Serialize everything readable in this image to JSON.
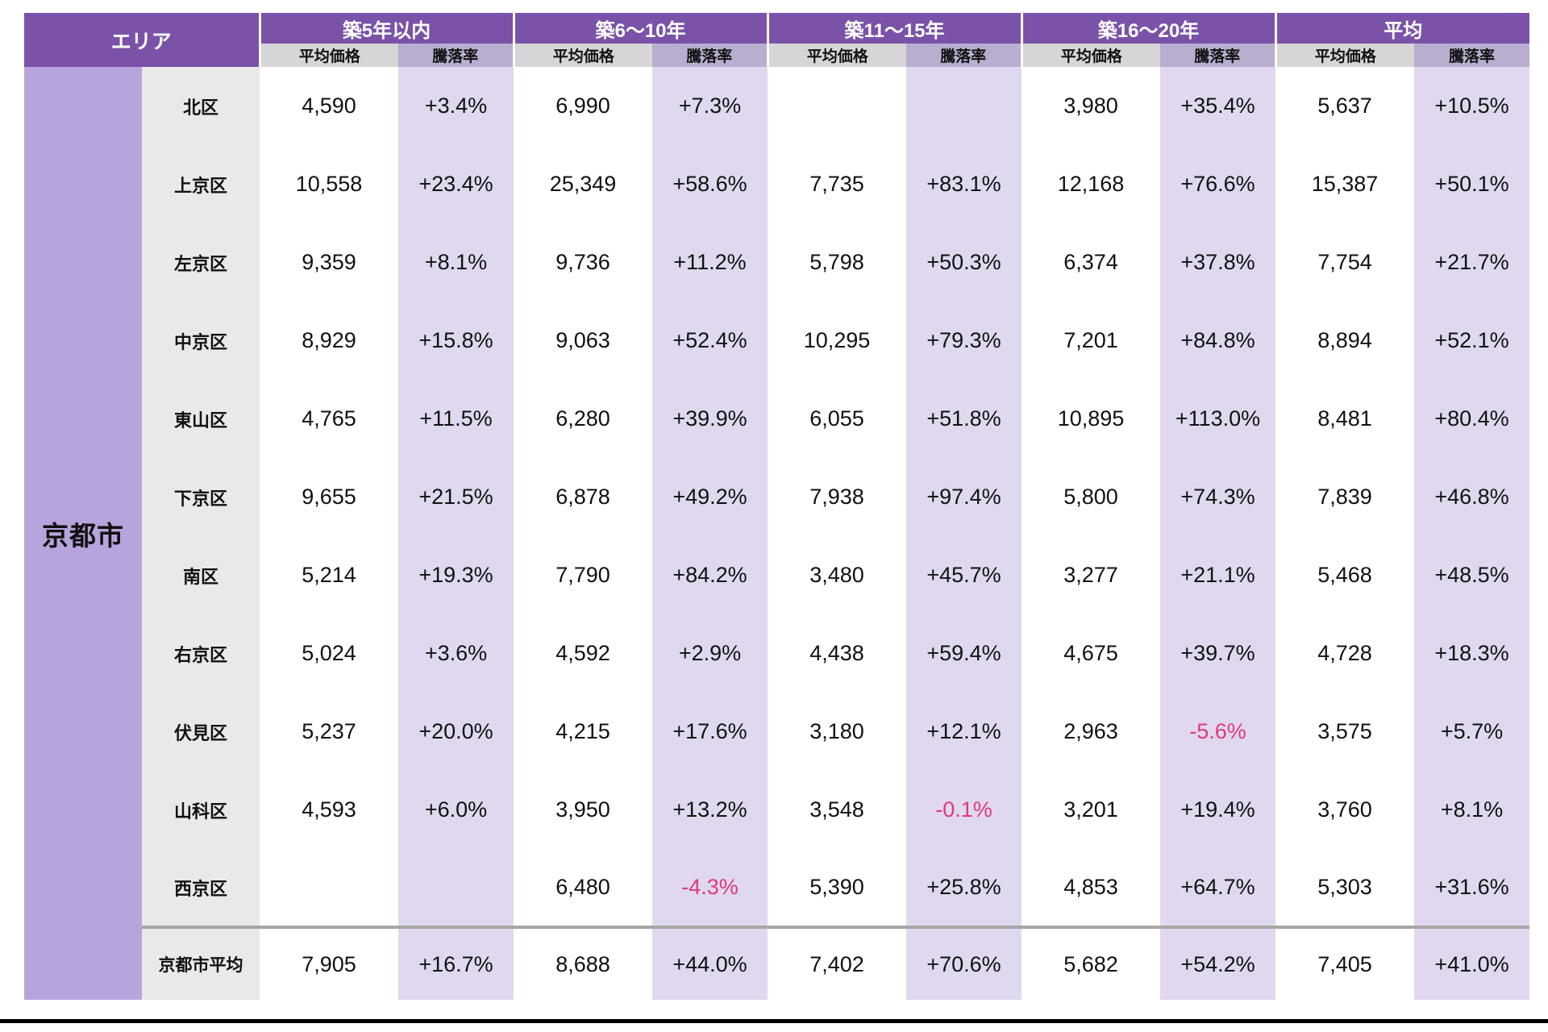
{
  "chart_data": {
    "type": "table",
    "area_header": "エリア",
    "city_label": "京都市",
    "column_groups": [
      {
        "label": "築5年以内"
      },
      {
        "label": "築6〜10年"
      },
      {
        "label": "築11〜15年"
      },
      {
        "label": "築16〜20年"
      },
      {
        "label": "平均"
      }
    ],
    "sub_headers": {
      "price": "平均価格",
      "rate": "騰落率"
    },
    "rows": [
      {
        "district": "北区",
        "cells": [
          "4,590",
          "+3.4%",
          "6,990",
          "+7.3%",
          "",
          "",
          "3,980",
          "+35.4%",
          "5,637",
          "+10.5%"
        ]
      },
      {
        "district": "上京区",
        "cells": [
          "10,558",
          "+23.4%",
          "25,349",
          "+58.6%",
          "7,735",
          "+83.1%",
          "12,168",
          "+76.6%",
          "15,387",
          "+50.1%"
        ]
      },
      {
        "district": "左京区",
        "cells": [
          "9,359",
          "+8.1%",
          "9,736",
          "+11.2%",
          "5,798",
          "+50.3%",
          "6,374",
          "+37.8%",
          "7,754",
          "+21.7%"
        ]
      },
      {
        "district": "中京区",
        "cells": [
          "8,929",
          "+15.8%",
          "9,063",
          "+52.4%",
          "10,295",
          "+79.3%",
          "7,201",
          "+84.8%",
          "8,894",
          "+52.1%"
        ]
      },
      {
        "district": "東山区",
        "cells": [
          "4,765",
          "+11.5%",
          "6,280",
          "+39.9%",
          "6,055",
          "+51.8%",
          "10,895",
          "+113.0%",
          "8,481",
          "+80.4%"
        ]
      },
      {
        "district": "下京区",
        "cells": [
          "9,655",
          "+21.5%",
          "6,878",
          "+49.2%",
          "7,938",
          "+97.4%",
          "5,800",
          "+74.3%",
          "7,839",
          "+46.8%"
        ]
      },
      {
        "district": "南区",
        "cells": [
          "5,214",
          "+19.3%",
          "7,790",
          "+84.2%",
          "3,480",
          "+45.7%",
          "3,277",
          "+21.1%",
          "5,468",
          "+48.5%"
        ]
      },
      {
        "district": "右京区",
        "cells": [
          "5,024",
          "+3.6%",
          "4,592",
          "+2.9%",
          "4,438",
          "+59.4%",
          "4,675",
          "+39.7%",
          "4,728",
          "+18.3%"
        ]
      },
      {
        "district": "伏見区",
        "cells": [
          "5,237",
          "+20.0%",
          "4,215",
          "+17.6%",
          "3,180",
          "+12.1%",
          "2,963",
          "-5.6%",
          "3,575",
          "+5.7%"
        ]
      },
      {
        "district": "山科区",
        "cells": [
          "4,593",
          "+6.0%",
          "3,950",
          "+13.2%",
          "3,548",
          "-0.1%",
          "3,201",
          "+19.4%",
          "3,760",
          "+8.1%"
        ]
      },
      {
        "district": "西京区",
        "cells": [
          "",
          "",
          "6,480",
          "-4.3%",
          "5,390",
          "+25.8%",
          "4,853",
          "+64.7%",
          "5,303",
          "+31.6%"
        ]
      }
    ],
    "average_row": {
      "district": "京都市平均",
      "cells": [
        "7,905",
        "+16.7%",
        "8,688",
        "+44.0%",
        "7,402",
        "+70.6%",
        "5,682",
        "+54.2%",
        "7,405",
        "+41.0%"
      ]
    },
    "colors": {
      "header_purple": "#7A52A8",
      "subheader_price_gray": "#D6D6D6",
      "subheader_rate_mauve": "#B9AED0",
      "rate_column_lavender": "#DFD8EE",
      "city_column_purple": "#B7A4DC",
      "district_column_gray": "#E9E9E9",
      "negative_value_pink": "#E0397E",
      "separator_gray": "#A6A6A6",
      "bottom_line_black": "#000000"
    }
  }
}
